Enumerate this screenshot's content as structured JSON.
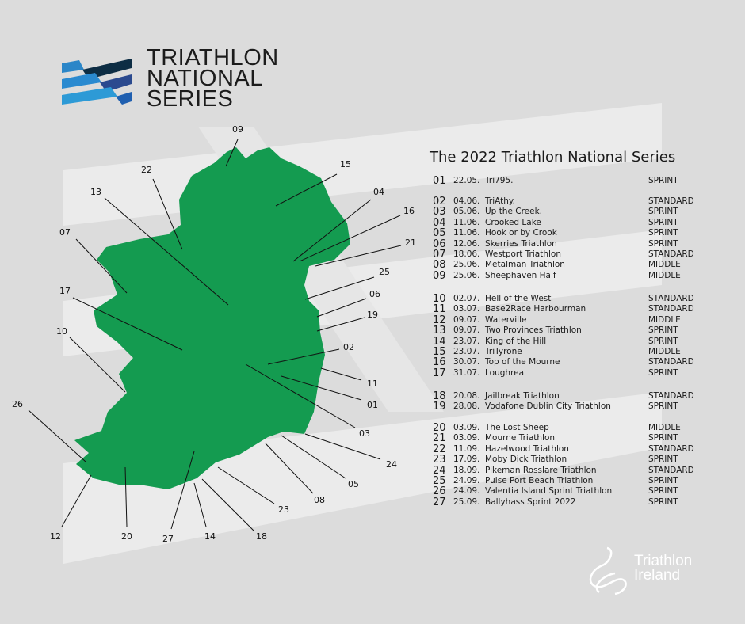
{
  "logo": {
    "lines": [
      "TRIATHLON",
      "NATIONAL",
      "SERIES"
    ],
    "colors": [
      "#0d2d44",
      "#2b4a8f",
      "#1f6ab5",
      "#2d9ad6"
    ]
  },
  "title": "The 2022 Triathlon National Series",
  "map": {
    "land_color": "#149b50",
    "markers": [
      "09",
      "22",
      "15",
      "13",
      "04",
      "16",
      "21",
      "07",
      "25",
      "06",
      "19",
      "17",
      "02",
      "10",
      "11",
      "01",
      "03",
      "26",
      "24",
      "05",
      "08",
      "23",
      "12",
      "20",
      "27",
      "14",
      "18"
    ]
  },
  "groups": [
    [
      {
        "num": "01",
        "date": "22.05.",
        "name": "Tri795.",
        "type": "SPRINT"
      }
    ],
    [
      {
        "num": "02",
        "date": "04.06.",
        "name": "TriAthy.",
        "type": "STANDARD"
      },
      {
        "num": "03",
        "date": "05.06.",
        "name": "Up the Creek.",
        "type": "SPRINT"
      },
      {
        "num": "04",
        "date": "11.06.",
        "name": "Crooked Lake",
        "type": "SPRINT"
      },
      {
        "num": "05",
        "date": "11.06.",
        "name": "Hook or by Crook",
        "type": "SPRINT"
      },
      {
        "num": "06",
        "date": "12.06.",
        "name": "Skerries Triathlon",
        "type": "SPRINT"
      },
      {
        "num": "07",
        "date": "18.06.",
        "name": "Westport Triathlon",
        "type": "STANDARD"
      },
      {
        "num": "08",
        "date": "25.06.",
        "name": "Metalman Triathlon",
        "type": "MIDDLE"
      },
      {
        "num": "09",
        "date": "25.06.",
        "name": "Sheephaven Half",
        "type": "MIDDLE"
      }
    ],
    [
      {
        "num": "10",
        "date": "02.07.",
        "name": "Hell of the West",
        "type": "STANDARD"
      },
      {
        "num": "11",
        "date": "03.07.",
        "name": "Base2Race Harbourman",
        "type": "STANDARD"
      },
      {
        "num": "12",
        "date": "09.07.",
        "name": "Waterville",
        "type": "MIDDLE"
      },
      {
        "num": "13",
        "date": "09.07.",
        "name": "Two Provinces Triathlon",
        "type": "SPRINT"
      },
      {
        "num": "14",
        "date": "23.07.",
        "name": "King of the Hill",
        "type": "SPRINT"
      },
      {
        "num": "15",
        "date": "23.07.",
        "name": "TriTyrone",
        "type": "MIDDLE"
      },
      {
        "num": "16",
        "date": "30.07.",
        "name": "Top of the Mourne",
        "type": "STANDARD"
      },
      {
        "num": "17",
        "date": "31.07.",
        "name": "Loughrea",
        "type": "SPRINT"
      }
    ],
    [
      {
        "num": "18",
        "date": "20.08.",
        "name": "Jailbreak Triathlon",
        "type": "STANDARD"
      },
      {
        "num": "19",
        "date": "28.08.",
        "name": "Vodafone Dublin City Triathlon",
        "type": "SPRINT"
      }
    ],
    [
      {
        "num": "20",
        "date": "03.09.",
        "name": "The Lost Sheep",
        "type": "MIDDLE"
      },
      {
        "num": "21",
        "date": "03.09.",
        "name": "Mourne Triathlon",
        "type": "SPRINT"
      },
      {
        "num": "22",
        "date": "11.09.",
        "name": "Hazelwood Triathlon",
        "type": "STANDARD"
      },
      {
        "num": "23",
        "date": "17.09.",
        "name": "Moby Dick Triathlon",
        "type": "SPRINT"
      },
      {
        "num": "24",
        "date": "18.09.",
        "name": "Pikeman Rosslare Triathlon",
        "type": "STANDARD"
      },
      {
        "num": "25",
        "date": "24.09.",
        "name": "Pulse Port Beach Triathlon",
        "type": "SPRINT"
      },
      {
        "num": "26",
        "date": "24.09.",
        "name": "Valentia Island Sprint Triathlon",
        "type": "SPRINT"
      },
      {
        "num": "27",
        "date": "25.09.",
        "name": "Ballyhass Sprint 2022",
        "type": "SPRINT"
      }
    ]
  ],
  "footer_logo": {
    "lines": [
      "Triathlon",
      "Ireland"
    ]
  }
}
